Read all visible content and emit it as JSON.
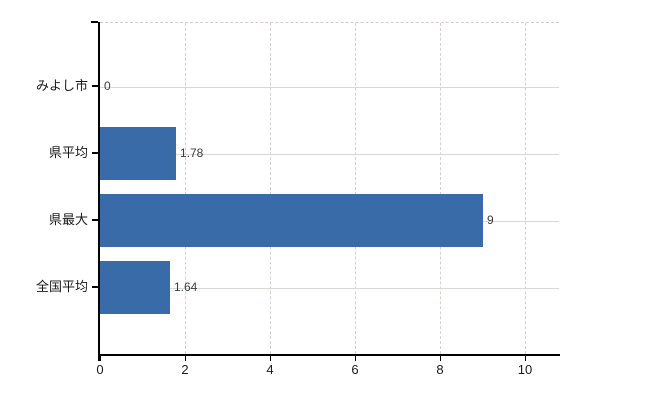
{
  "chart": {
    "background_color": "#ffffff",
    "bar_color": "#3a6ba9",
    "axis_color": "#000000",
    "h_gridline_color": "#d5dad5",
    "v_gridline_color": "#d6d0d6",
    "category_label_color": "#1a1a1a",
    "value_label_color": "#3d3d3d"
  },
  "chart_data": {
    "type": "bar",
    "orientation": "horizontal",
    "title": "",
    "xlabel": "",
    "ylabel": "",
    "categories": [
      "みよし市",
      "県平均",
      "県最大",
      "全国平均"
    ],
    "values": [
      0,
      1.78,
      9,
      1.64
    ],
    "value_labels": [
      "0",
      "1.78",
      "9",
      "1.64"
    ],
    "xlim": [
      0,
      10.8
    ],
    "x_ticks": [
      0,
      2,
      4,
      6,
      8,
      10
    ],
    "x_tick_labels": [
      "0",
      "2",
      "4",
      "6",
      "8",
      "10"
    ],
    "grid": "on",
    "legend": "none"
  }
}
